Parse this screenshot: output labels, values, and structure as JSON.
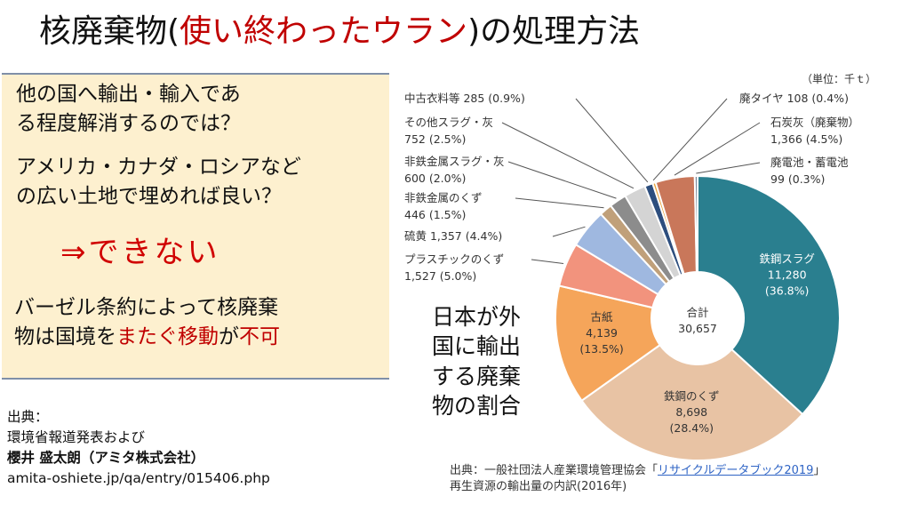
{
  "title": {
    "prefix": "核廃棄物(",
    "highlight": "使い終わったウラン",
    "suffix": ")の処理方法"
  },
  "panel": {
    "question_lines": [
      "他の国へ輸出・輸入であ",
      "る程度解消するのでは？"
    ],
    "suggestion_lines": [
      "アメリカ・カナダ・ロシアなど",
      "の広い土地で埋めれば良い？"
    ],
    "answer": "⇒できない",
    "reason_line1": "バーゼル条約によって核廃棄",
    "reason_line2_plain": "物は国境を",
    "reason_line2_red1": "またぐ移動",
    "reason_line2_mid": "が",
    "reason_line2_red2": "不可"
  },
  "source_left": {
    "label": "出典：",
    "line1": "環境省報道発表および",
    "line2": "櫻井 盛太朗（アミタ株式会社）",
    "url": "amita-oshiete.jp/qa/entry/015406.php"
  },
  "chart_caption": "日本が外\n国に輸出\nする廃棄\n物の割合",
  "source_right": {
    "prefix": "出典：一般社団法人産業環境管理協会「",
    "link": "リサイクルデータブック2019",
    "suffix": "」",
    "line2": "再生資源の輸出量の内訳(2016年)"
  },
  "chart_data": {
    "type": "pie",
    "style": "donut",
    "unit_label": "（単位：千ｔ）",
    "center_label": "合計",
    "center_value": "30,657",
    "total": 30657,
    "slices": [
      {
        "name": "鉄鋼スラグ",
        "value": 11280,
        "value_text": "11,280",
        "percent_text": "(36.8%)",
        "color": "#2a7f8f",
        "label_pos": "inside",
        "text_color": "#ffffff"
      },
      {
        "name": "鉄鋼のくず",
        "value": 8698,
        "value_text": "8,698",
        "percent_text": "(28.4%)",
        "color": "#e8c3a4",
        "label_pos": "inside",
        "text_color": "#333333"
      },
      {
        "name": "古紙",
        "value": 4139,
        "value_text": "4,139",
        "percent_text": "(13.5%)",
        "color": "#f5a55a",
        "label_pos": "inside",
        "text_color": "#333333"
      },
      {
        "name": "プラスチックのくず",
        "value": 1527,
        "value_text": "1,527",
        "percent_text": "(5.0%)",
        "color": "#f2937d",
        "label_pos": "outside"
      },
      {
        "name": "硫黄",
        "value": 1357,
        "value_text": "1,357",
        "percent_text": "(4.4%)",
        "color": "#9fb8e0",
        "label_pos": "outside"
      },
      {
        "name": "非鉄金属のくず",
        "value": 446,
        "value_text": "446",
        "percent_text": "(1.5%)",
        "color": "#c0a07a",
        "label_pos": "outside"
      },
      {
        "name": "非鉄金属スラグ・灰",
        "value": 600,
        "value_text": "600",
        "percent_text": "(2.0%)",
        "color": "#8c8c8c",
        "label_pos": "outside"
      },
      {
        "name": "その他スラグ・灰",
        "value": 752,
        "value_text": "752",
        "percent_text": "(2.5%)",
        "color": "#d4d4d4",
        "label_pos": "outside"
      },
      {
        "name": "中古衣料等",
        "value": 285,
        "value_text": "285",
        "percent_text": "(0.9%)",
        "color": "#2d4e7e",
        "label_pos": "outside"
      },
      {
        "name": "廃タイヤ",
        "value": 108,
        "value_text": "108",
        "percent_text": "(0.4%)",
        "color": "#e8a33c",
        "label_pos": "outside"
      },
      {
        "name": "石炭灰（廃棄物）",
        "value": 1366,
        "value_text": "1,366",
        "percent_text": "(4.5%)",
        "color": "#c9775a",
        "label_pos": "outside"
      },
      {
        "name": "廃電池・蓄電池",
        "value": 99,
        "value_text": "99",
        "percent_text": "(0.3%)",
        "color": "#7a8799",
        "label_pos": "outside"
      }
    ]
  }
}
